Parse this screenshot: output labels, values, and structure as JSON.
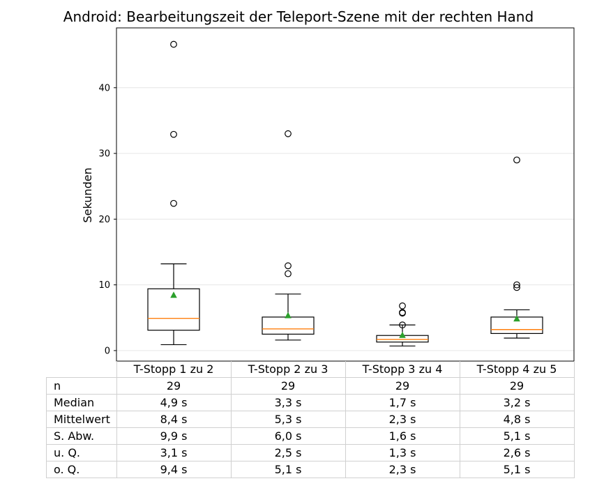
{
  "chart_data": {
    "type": "box",
    "title": "Android: Bearbeitungszeit der Teleport-Szene mit der rechten Hand",
    "xlabel": "",
    "ylabel": "Sekunden",
    "ylim": [
      -1.6,
      49.1
    ],
    "yticks": [
      0,
      10,
      20,
      30,
      40
    ],
    "grid": "horizontal",
    "categories": [
      "T-Stopp 1 zu 2",
      "T-Stopp 2 zu 3",
      "T-Stopp 3 zu 4",
      "T-Stopp 4 zu 5"
    ],
    "boxes": [
      {
        "whisker_low": 0.9,
        "q1": 3.1,
        "median": 4.9,
        "q3": 9.4,
        "whisker_high": 13.2,
        "mean": 8.4,
        "outliers": [
          22.4,
          32.9,
          46.6
        ]
      },
      {
        "whisker_low": 1.6,
        "q1": 2.5,
        "median": 3.3,
        "q3": 5.1,
        "whisker_high": 8.6,
        "mean": 5.3,
        "outliers": [
          11.7,
          12.9,
          33.0
        ]
      },
      {
        "whisker_low": 0.7,
        "q1": 1.3,
        "median": 1.7,
        "q3": 2.3,
        "whisker_high": 3.9,
        "mean": 2.3,
        "outliers": [
          3.9,
          5.7,
          5.8,
          6.8
        ]
      },
      {
        "whisker_low": 1.9,
        "q1": 2.6,
        "median": 3.2,
        "q3": 5.1,
        "whisker_high": 6.2,
        "mean": 4.8,
        "outliers": [
          9.6,
          10.0,
          29.0
        ]
      }
    ],
    "colors": {
      "box": "#000000",
      "median": "#ff7f0e",
      "mean": "#2ca02c",
      "grid": "#e6e6e6"
    }
  },
  "table": {
    "rows": [
      {
        "label": "n",
        "values": [
          "29",
          "29",
          "29",
          "29"
        ]
      },
      {
        "label": "Median",
        "values": [
          "4,9 s",
          "3,3 s",
          "1,7 s",
          "3,2 s"
        ]
      },
      {
        "label": "Mittelwert",
        "values": [
          "8,4 s",
          "5,3 s",
          "2,3 s",
          "4,8 s"
        ]
      },
      {
        "label": "S. Abw.",
        "values": [
          "9,9 s",
          "6,0 s",
          "1,6 s",
          "5,1 s"
        ]
      },
      {
        "label": "u. Q.",
        "values": [
          "3,1 s",
          "2,5 s",
          "1,3 s",
          "2,6 s"
        ]
      },
      {
        "label": "o. Q.",
        "values": [
          "9,4 s",
          "5,1 s",
          "2,3 s",
          "5,1 s"
        ]
      }
    ]
  }
}
